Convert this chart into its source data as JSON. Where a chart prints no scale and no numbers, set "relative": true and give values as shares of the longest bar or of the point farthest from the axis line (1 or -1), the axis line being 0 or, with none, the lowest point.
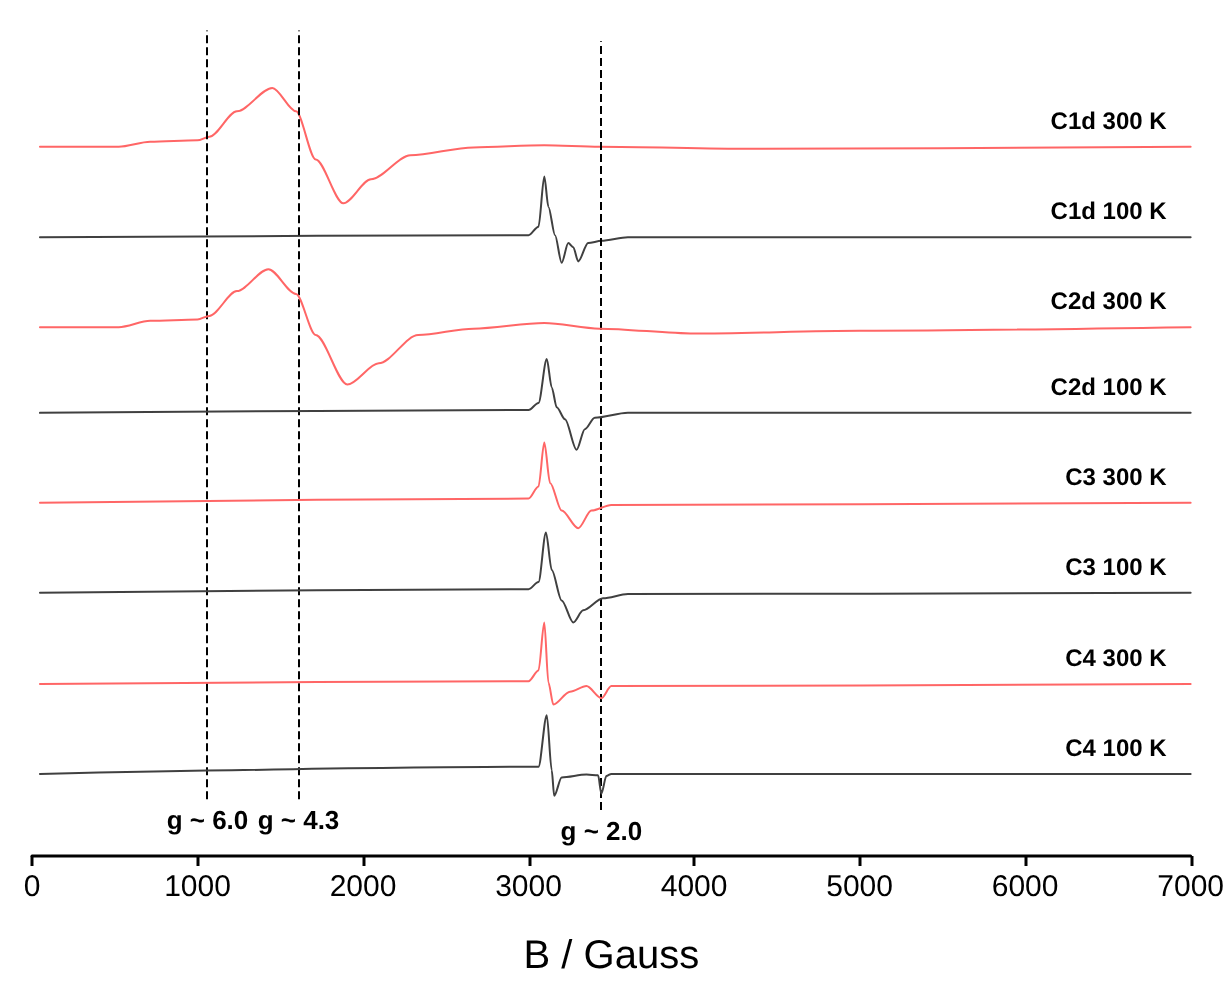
{
  "chart_data": {
    "type": "line",
    "relative": true,
    "xlabel": "B / Gauss",
    "xlim": [
      0,
      7000
    ],
    "xticks": [
      0,
      1000,
      2000,
      3000,
      4000,
      5000,
      6000,
      7000
    ],
    "grid": false,
    "legend": false,
    "tick_labels": "x",
    "marker": "none",
    "line_style": "solid",
    "series": [
      {
        "name": "C1d 300 K",
        "color": "#ff6666",
        "x": [
          48,
          524,
          714,
          1000,
          1071,
          1238,
          1452,
          1595,
          1714,
          1881,
          2048,
          2286,
          2667,
          3095,
          3429,
          4333,
          7000
        ],
        "values": [
          0.917,
          0.917,
          0.924,
          0.926,
          0.931,
          0.967,
          1.0,
          0.967,
          0.899,
          0.837,
          0.871,
          0.905,
          0.916,
          0.919,
          0.917,
          0.914,
          0.917
        ]
      },
      {
        "name": "C1d 100 K",
        "color": "#404040",
        "x": [
          48,
          3000,
          3060,
          3095,
          3120,
          3160,
          3200,
          3240,
          3270,
          3300,
          3360,
          3440,
          3600,
          7000
        ],
        "values": [
          0.789,
          0.792,
          0.804,
          0.875,
          0.832,
          0.792,
          0.753,
          0.781,
          0.775,
          0.755,
          0.781,
          0.784,
          0.789,
          0.789
        ]
      },
      {
        "name": "C2d 300 K",
        "color": "#ff6666",
        "x": [
          48,
          524,
          714,
          1000,
          1071,
          1238,
          1428,
          1595,
          1714,
          1905,
          2095,
          2333,
          2667,
          3095,
          3429,
          4000,
          5000,
          7000
        ],
        "values": [
          0.662,
          0.662,
          0.671,
          0.673,
          0.678,
          0.713,
          0.744,
          0.709,
          0.651,
          0.581,
          0.611,
          0.651,
          0.66,
          0.668,
          0.66,
          0.653,
          0.657,
          0.662
        ]
      },
      {
        "name": "C2d 100 K",
        "color": "#404040",
        "x": [
          48,
          3000,
          3060,
          3110,
          3140,
          3170,
          3220,
          3290,
          3340,
          3400,
          3600,
          7000
        ],
        "values": [
          0.541,
          0.545,
          0.555,
          0.617,
          0.577,
          0.549,
          0.532,
          0.489,
          0.518,
          0.534,
          0.541,
          0.541
        ]
      },
      {
        "name": "C3 300 K",
        "color": "#ff6666",
        "x": [
          48,
          3000,
          3060,
          3095,
          3130,
          3200,
          3300,
          3380,
          3500,
          7000
        ],
        "values": [
          0.414,
          0.42,
          0.437,
          0.499,
          0.442,
          0.403,
          0.378,
          0.403,
          0.411,
          0.414
        ]
      },
      {
        "name": "C3 100 K",
        "color": "#404040",
        "x": [
          48,
          3000,
          3060,
          3105,
          3140,
          3200,
          3270,
          3330,
          3450,
          3600,
          7000
        ],
        "values": [
          0.287,
          0.292,
          0.302,
          0.372,
          0.319,
          0.276,
          0.245,
          0.262,
          0.279,
          0.285,
          0.287
        ]
      },
      {
        "name": "C4 300 K",
        "color": "#ff6666",
        "x": [
          48,
          3000,
          3060,
          3095,
          3120,
          3150,
          3250,
          3350,
          3440,
          3500,
          7000
        ],
        "values": [
          0.158,
          0.162,
          0.177,
          0.245,
          0.16,
          0.129,
          0.147,
          0.155,
          0.138,
          0.155,
          0.158
        ]
      },
      {
        "name": "C4 100 K",
        "color": "#404040",
        "x": [
          48,
          3060,
          3110,
          3140,
          3155,
          3200,
          3350,
          3420,
          3440,
          3470,
          3500,
          7000
        ],
        "values": [
          0.031,
          0.041,
          0.114,
          0.036,
          0.0,
          0.026,
          0.03,
          0.029,
          0.003,
          0.028,
          0.031,
          0.031
        ]
      }
    ],
    "ref_lines": [
      {
        "axis": "x",
        "value": 1060,
        "label": "g ~ 6.0",
        "color": "#000000",
        "line_style": "dashed"
      },
      {
        "axis": "x",
        "value": 1610,
        "label": "g ~ 4.3",
        "color": "#000000",
        "line_style": "dashed"
      },
      {
        "axis": "x",
        "value": 3440,
        "label": "g ~ 2.0",
        "color": "#000000",
        "line_style": "dashed"
      }
    ]
  }
}
